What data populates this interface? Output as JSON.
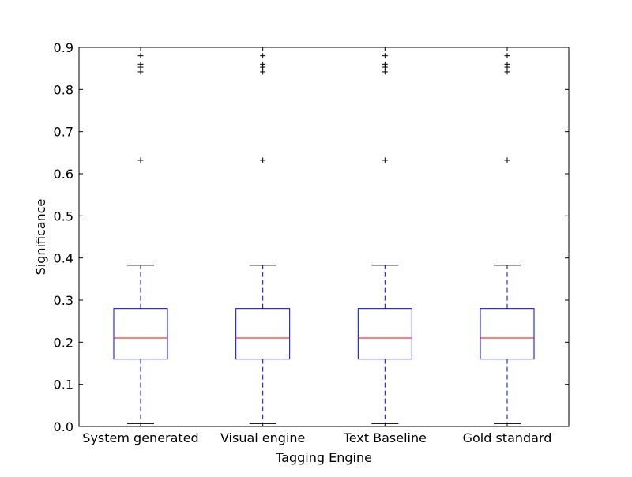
{
  "chart_data": {
    "type": "box",
    "title": "",
    "xlabel": "Tagging Engine",
    "ylabel": "Significance",
    "ylim": [
      0,
      0.9
    ],
    "yticks": [
      "0.0",
      "0.1",
      "0.2",
      "0.3",
      "0.4",
      "0.5",
      "0.6",
      "0.7",
      "0.8",
      "0.9"
    ],
    "grid": false,
    "categories": [
      "System generated",
      "Visual engine",
      "Text Baseline",
      "Gold standard"
    ],
    "boxes": [
      {
        "q1": 0.16,
        "median": 0.21,
        "q3": 0.28,
        "whisker_low": 0.007,
        "whisker_high": 0.383,
        "outliers": [
          0.632,
          0.842,
          0.853,
          0.86,
          0.88
        ]
      },
      {
        "q1": 0.16,
        "median": 0.21,
        "q3": 0.28,
        "whisker_low": 0.007,
        "whisker_high": 0.383,
        "outliers": [
          0.632,
          0.842,
          0.853,
          0.86,
          0.88
        ]
      },
      {
        "q1": 0.16,
        "median": 0.21,
        "q3": 0.28,
        "whisker_low": 0.007,
        "whisker_high": 0.383,
        "outliers": [
          0.632,
          0.842,
          0.853,
          0.86,
          0.88
        ]
      },
      {
        "q1": 0.16,
        "median": 0.21,
        "q3": 0.28,
        "whisker_low": 0.007,
        "whisker_high": 0.383,
        "outliers": [
          0.632,
          0.842,
          0.853,
          0.86,
          0.88
        ]
      }
    ],
    "colors": {
      "box": "#0000ff",
      "median": "#ff0000",
      "whisker": "#0000ff",
      "cap": "#000000",
      "outlier": "#000000"
    }
  }
}
